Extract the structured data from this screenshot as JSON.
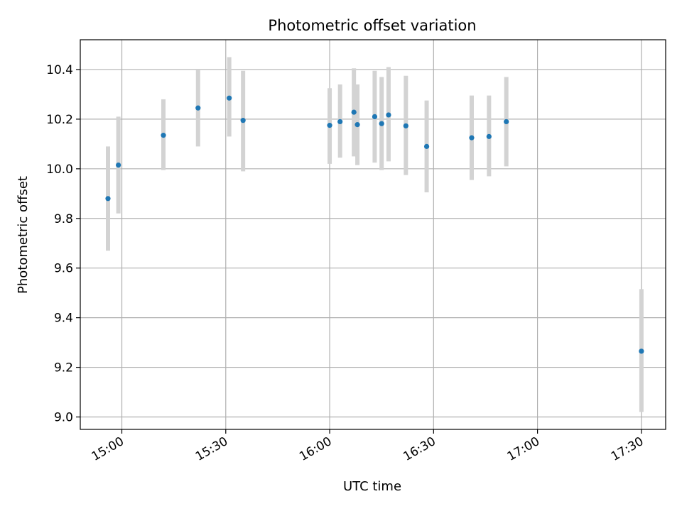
{
  "chart_data": {
    "type": "scatter",
    "title": "Photometric offset variation",
    "xlabel": "UTC time",
    "ylabel": "Photometric offset",
    "xlim": [
      "14:48",
      "17:37"
    ],
    "ylim": [
      8.95,
      10.52
    ],
    "grid": true,
    "colors": {
      "point": "#1f77b4",
      "errorbar": "#d3d3d3"
    },
    "x_ticks": [
      "15:00",
      "15:30",
      "16:00",
      "16:30",
      "17:00",
      "17:30"
    ],
    "y_ticks": [
      "9.0",
      "9.2",
      "9.4",
      "9.6",
      "9.8",
      "10.0",
      "10.2",
      "10.4"
    ],
    "points": [
      {
        "x": "14:56",
        "y": 9.88,
        "ylow": 9.67,
        "yhigh": 10.09
      },
      {
        "x": "14:59",
        "y": 10.015,
        "ylow": 9.82,
        "yhigh": 10.21
      },
      {
        "x": "15:12",
        "y": 10.135,
        "ylow": 9.995,
        "yhigh": 10.28
      },
      {
        "x": "15:22",
        "y": 10.245,
        "ylow": 10.09,
        "yhigh": 10.4
      },
      {
        "x": "15:31",
        "y": 10.285,
        "ylow": 10.13,
        "yhigh": 10.45
      },
      {
        "x": "15:35",
        "y": 10.195,
        "ylow": 9.99,
        "yhigh": 10.395
      },
      {
        "x": "16:00",
        "y": 10.175,
        "ylow": 10.02,
        "yhigh": 10.325
      },
      {
        "x": "16:03",
        "y": 10.19,
        "ylow": 10.045,
        "yhigh": 10.34
      },
      {
        "x": "16:07",
        "y": 10.228,
        "ylow": 10.05,
        "yhigh": 10.405
      },
      {
        "x": "16:08",
        "y": 10.178,
        "ylow": 10.015,
        "yhigh": 10.34
      },
      {
        "x": "16:13",
        "y": 10.21,
        "ylow": 10.025,
        "yhigh": 10.395
      },
      {
        "x": "16:15",
        "y": 10.182,
        "ylow": 9.995,
        "yhigh": 10.37
      },
      {
        "x": "16:17",
        "y": 10.217,
        "ylow": 10.03,
        "yhigh": 10.41
      },
      {
        "x": "16:22",
        "y": 10.173,
        "ylow": 9.975,
        "yhigh": 10.375
      },
      {
        "x": "16:28",
        "y": 10.09,
        "ylow": 9.905,
        "yhigh": 10.275
      },
      {
        "x": "16:41",
        "y": 10.125,
        "ylow": 9.955,
        "yhigh": 10.295
      },
      {
        "x": "16:46",
        "y": 10.13,
        "ylow": 9.97,
        "yhigh": 10.295
      },
      {
        "x": "16:51",
        "y": 10.19,
        "ylow": 10.01,
        "yhigh": 10.37
      },
      {
        "x": "17:30",
        "y": 9.265,
        "ylow": 9.02,
        "yhigh": 9.515
      }
    ]
  }
}
